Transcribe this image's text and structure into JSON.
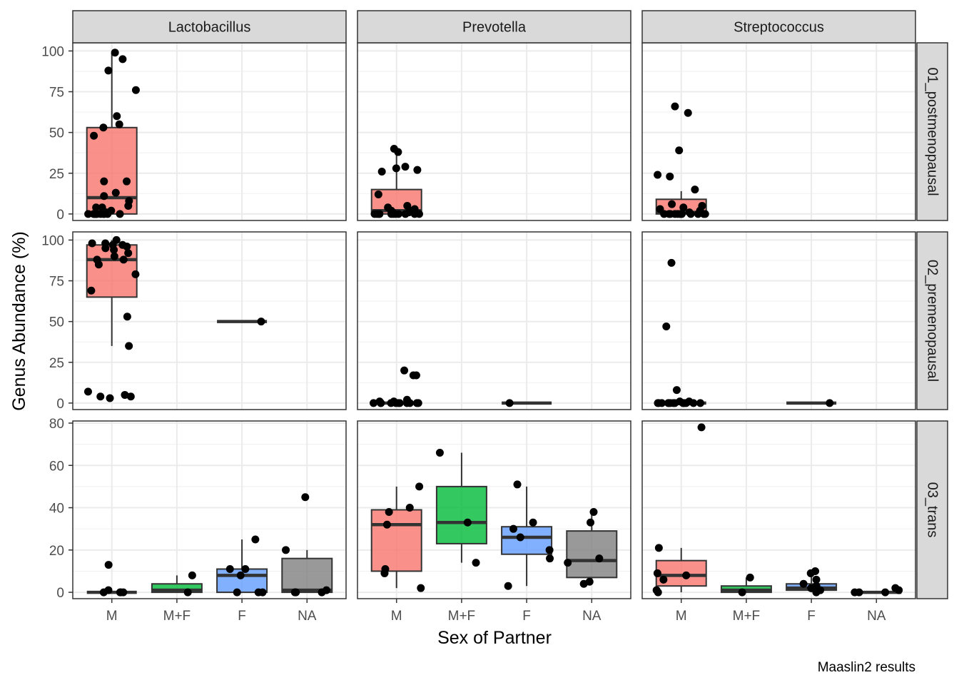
{
  "chart_data": {
    "type": "boxplot",
    "xlabel": "Sex of Partner",
    "ylabel": "Genus Abundance (%)",
    "caption": "Maaslin2 results",
    "categories": [
      "M",
      "M+F",
      "F",
      "NA"
    ],
    "columns": [
      "Lactobacillus",
      "Prevotella",
      "Streptococcus"
    ],
    "rows": [
      "01_postmenopausal",
      "02_premenopausal",
      "03_trans"
    ],
    "row_axes": [
      {
        "ylim": [
          -4,
          105
        ],
        "ticks": [
          0,
          25,
          50,
          75,
          100
        ]
      },
      {
        "ylim": [
          -4,
          105
        ],
        "ticks": [
          0,
          25,
          50,
          75,
          100
        ]
      },
      {
        "ylim": [
          -3,
          81
        ],
        "ticks": [
          0,
          20,
          40,
          60,
          80
        ]
      }
    ],
    "colors": {
      "M": "#F8766D",
      "M+F": "#00BA38",
      "F": "#619CFF",
      "NA": "#7F7F7F"
    },
    "panels": [
      {
        "row": 0,
        "col": 0,
        "groups": [
          {
            "cat": "M",
            "box": [
              0,
              0,
              10,
              53,
              99
            ],
            "points": [
              0,
              0,
              0,
              0,
              0,
              0,
              0,
              0,
              0,
              0,
              0,
              1,
              2,
              4,
              4,
              5,
              8,
              11,
              13,
              20,
              20,
              48,
              53,
              55,
              60,
              76,
              88,
              95,
              99
            ]
          }
        ]
      },
      {
        "row": 0,
        "col": 1,
        "groups": [
          {
            "cat": "M",
            "box": [
              0,
              0,
              2,
              15,
              37
            ],
            "points": [
              0,
              0,
              0,
              0,
              0,
              0,
              0,
              0,
              0,
              0,
              0,
              1,
              1,
              1,
              2,
              2,
              3,
              4,
              5,
              12,
              26,
              27,
              28,
              29,
              38,
              40
            ]
          }
        ]
      },
      {
        "row": 0,
        "col": 2,
        "groups": [
          {
            "cat": "M",
            "box": [
              0,
              0,
              1,
              9,
              14
            ],
            "points": [
              0,
              0,
              0,
              0,
              0,
              0,
              0,
              0,
              0,
              0,
              0,
              0,
              1,
              2,
              3,
              4,
              5,
              6,
              15,
              23,
              24,
              39,
              62,
              66
            ]
          }
        ]
      },
      {
        "row": 1,
        "col": 0,
        "groups": [
          {
            "cat": "M",
            "box": [
              35,
              65,
              88,
              97,
              100
            ],
            "points": [
              3,
              4,
              4,
              5,
              7,
              35,
              53,
              69,
              79,
              85,
              88,
              88,
              90,
              92,
              94,
              95,
              96,
              97,
              97,
              98,
              98,
              100
            ]
          },
          {
            "cat": "F",
            "box": [
              50,
              50,
              50,
              50,
              50
            ],
            "points": [
              50
            ]
          }
        ]
      },
      {
        "row": 1,
        "col": 1,
        "groups": [
          {
            "cat": "M",
            "box": [
              0,
              0,
              0,
              0,
              0
            ],
            "points": [
              0,
              0,
              0,
              0,
              0,
              0,
              0,
              0,
              0,
              0,
              0,
              1,
              1,
              2,
              17,
              17,
              20
            ]
          },
          {
            "cat": "F",
            "box": [
              0,
              0,
              0,
              0,
              0
            ],
            "points": [
              0
            ]
          }
        ]
      },
      {
        "row": 1,
        "col": 2,
        "groups": [
          {
            "cat": "M",
            "box": [
              0,
              0,
              0,
              0,
              0
            ],
            "points": [
              0,
              0,
              0,
              0,
              0,
              0,
              0,
              0,
              0,
              0,
              0,
              0,
              0,
              0,
              1,
              1,
              8,
              47,
              86
            ]
          },
          {
            "cat": "F",
            "box": [
              0,
              0,
              0,
              0,
              0
            ],
            "points": [
              0
            ]
          }
        ]
      },
      {
        "row": 2,
        "col": 0,
        "groups": [
          {
            "cat": "M",
            "box": [
              0,
              0,
              0,
              0,
              0
            ],
            "points": [
              0,
              0,
              0,
              0,
              1,
              13
            ]
          },
          {
            "cat": "M+F",
            "box": [
              0,
              0,
              1,
              4,
              8
            ],
            "points": [
              0,
              8
            ]
          },
          {
            "cat": "F",
            "box": [
              0,
              0,
              8,
              11,
              25
            ],
            "points": [
              0,
              0,
              0,
              8,
              11,
              11,
              25
            ]
          },
          {
            "cat": "NA",
            "box": [
              0,
              0,
              1,
              16,
              20
            ],
            "points": [
              0,
              0,
              0,
              1,
              20,
              45
            ]
          }
        ]
      },
      {
        "row": 2,
        "col": 1,
        "groups": [
          {
            "cat": "M",
            "box": [
              2,
              10,
              32,
              39,
              50
            ],
            "points": [
              2,
              9,
              11,
              32,
              38,
              40,
              50
            ]
          },
          {
            "cat": "M+F",
            "box": [
              14,
              23,
              33,
              50,
              66
            ],
            "points": [
              14,
              33,
              66
            ]
          },
          {
            "cat": "F",
            "box": [
              3,
              18,
              26,
              31,
              50
            ],
            "points": [
              3,
              16,
              20,
              26,
              30,
              33,
              51
            ]
          },
          {
            "cat": "NA",
            "box": [
              4,
              7,
              15,
              29,
              38
            ],
            "points": [
              4,
              5,
              14,
              16,
              33,
              38
            ]
          }
        ]
      },
      {
        "row": 2,
        "col": 2,
        "groups": [
          {
            "cat": "M",
            "box": [
              0,
              3,
              8,
              15,
              21
            ],
            "points": [
              0,
              1,
              6,
              8,
              9,
              21,
              78
            ]
          },
          {
            "cat": "M+F",
            "box": [
              0,
              0,
              1,
              3,
              7
            ],
            "points": [
              0,
              7
            ]
          },
          {
            "cat": "F",
            "box": [
              0,
              1,
              2,
              4,
              9
            ],
            "points": [
              0,
              1,
              2,
              3,
              4,
              6,
              9,
              10
            ]
          },
          {
            "cat": "NA",
            "box": [
              0,
              0,
              0,
              0,
              0
            ],
            "points": [
              0,
              0,
              0,
              1,
              2
            ]
          }
        ]
      }
    ]
  }
}
